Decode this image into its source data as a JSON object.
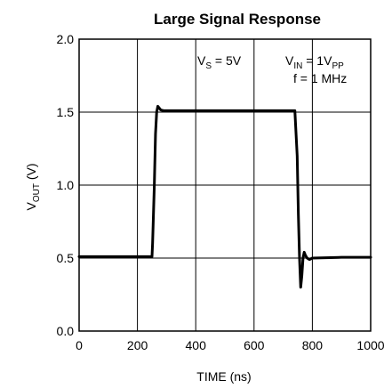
{
  "chart_data": {
    "type": "line",
    "title": "Large Signal Response",
    "xlabel": "TIME (ns)",
    "ylabel": {
      "main": "V",
      "sub": "OUT",
      "unit": " (V)"
    },
    "xlim": [
      0,
      1000
    ],
    "ylim": [
      0,
      2.0
    ],
    "x_ticks": [
      "0",
      "200",
      "400",
      "600",
      "800",
      "1000"
    ],
    "x_tick_values": [
      0,
      200,
      400,
      600,
      800,
      1000
    ],
    "y_ticks": [
      "0.0",
      "0.5",
      "1.0",
      "1.5",
      "2.0"
    ],
    "y_tick_values": [
      0,
      0.5,
      1.0,
      1.5,
      2.0
    ],
    "grid": true,
    "annotations": {
      "vs": {
        "main": "V",
        "sub": "S",
        "rest": " = 5V"
      },
      "vin": {
        "main": "V",
        "sub": "IN",
        "mid": " = 1V",
        "sub2": "PP"
      },
      "freq": "f = 1 MHz"
    },
    "series": [
      {
        "color": "#000000",
        "x": [
          0,
          250,
          252,
          258,
          262,
          266,
          270,
          274,
          280,
          290,
          300,
          400,
          500,
          600,
          700,
          740,
          748,
          752,
          756,
          760,
          764,
          768,
          772,
          776,
          782,
          790,
          800,
          900,
          1000
        ],
        "y": [
          0.51,
          0.51,
          0.6,
          1.0,
          1.35,
          1.5,
          1.54,
          1.53,
          1.515,
          1.51,
          1.51,
          1.51,
          1.51,
          1.51,
          1.51,
          1.51,
          1.2,
          0.8,
          0.5,
          0.3,
          0.38,
          0.5,
          0.54,
          0.52,
          0.5,
          0.49,
          0.5,
          0.505,
          0.505
        ]
      }
    ]
  }
}
